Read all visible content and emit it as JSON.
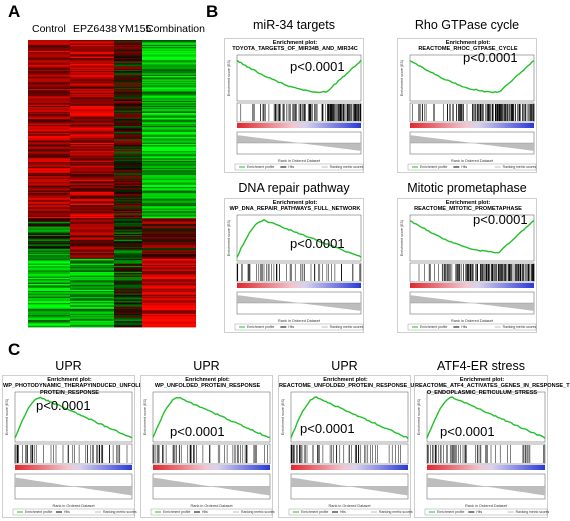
{
  "figure": {
    "panel_labels": [
      "A",
      "B",
      "C"
    ],
    "heatmap": {
      "columns": [
        "Control",
        "EPZ6438",
        "YM155",
        "Combination"
      ]
    }
  },
  "chart_data": [
    {
      "type": "heatmap",
      "panel": "A",
      "title": "",
      "columns": [
        "Control",
        "EPZ6438",
        "YM155",
        "Combination"
      ],
      "colors": {
        "high": "#ff1a1a",
        "low": "#1aff1a",
        "mid": "#000000"
      }
    },
    {
      "type": "line",
      "panel": "B",
      "title": "miR-34 targets",
      "enrichment_title": "Enrichment plot:\nTOYOTA_TARGETS_OF_MIR34B_AND_MIR34C",
      "p_value": "p<0.0001",
      "ylabel": "Enrichment score (ES)",
      "xlabel": "Rank in Ordered Dataset",
      "legend": [
        "Enrichment profile",
        "Hits",
        "Ranking metric scores"
      ],
      "shape": "negative"
    },
    {
      "type": "line",
      "panel": "B",
      "title": "Rho GTPase cycle",
      "enrichment_title": "Enrichment plot:\nREACTOME_RHOC_GTPASE_CYCLE",
      "p_value": "p<0.0001",
      "ylabel": "Enrichment score (ES)",
      "xlabel": "Rank in Ordered Dataset",
      "legend": [
        "Enrichment profile",
        "Hits",
        "Ranking metric scores"
      ],
      "shape": "negative"
    },
    {
      "type": "line",
      "panel": "B",
      "title": "DNA repair pathway",
      "enrichment_title": "Enrichment plot:\nWP_DNA_REPAIR_PATHWAYS_FULL_NETWORK",
      "p_value": "p<0.0001",
      "ylabel": "Enrichment score (ES)",
      "xlabel": "Rank in Ordered Dataset",
      "legend": [
        "Enrichment profile",
        "Hits",
        "Ranking metric scores"
      ],
      "shape": "positive"
    },
    {
      "type": "line",
      "panel": "B",
      "title": "Mitotic prometaphase",
      "enrichment_title": "Enrichment plot:\nREACTOME_MITOTIC_PROMETAPHASE",
      "p_value": "p<0.0001",
      "ylabel": "Enrichment score (ES)",
      "xlabel": "Rank in Ordered Dataset",
      "legend": [
        "Enrichment profile",
        "Hits",
        "Ranking metric scores"
      ],
      "shape": "negative"
    },
    {
      "type": "line",
      "panel": "C",
      "title": "UPR",
      "enrichment_title": "Enrichment plot:\nWP_PHOTODYNAMIC_THERAPYINDUCED_UNFOLDED_\nPROTEIN_RESPONSE",
      "p_value": "p<0.0001",
      "ylabel": "Enrichment score (ES)",
      "xlabel": "Rank in Ordered Dataset",
      "legend": [
        "Enrichment profile",
        "Hits",
        "Ranking metric scores"
      ],
      "shape": "positive"
    },
    {
      "type": "line",
      "panel": "C",
      "title": "UPR",
      "enrichment_title": "Enrichment plot: WP_UNFOLDED_PROTEIN_RESPONSE",
      "p_value": "p<0.0001",
      "ylabel": "Enrichment score (ES)",
      "xlabel": "Rank in Ordered Dataset",
      "legend": [
        "Enrichment profile",
        "Hits",
        "Ranking metric scores"
      ],
      "shape": "positive"
    },
    {
      "type": "line",
      "panel": "C",
      "title": "UPR",
      "enrichment_title": "Enrichment plot:\nREACTOME_UNFOLDED_PROTEIN_RESPONSE_UPR",
      "p_value": "p<0.0001",
      "ylabel": "Enrichment score (ES)",
      "xlabel": "Rank in Ordered Dataset",
      "legend": [
        "Enrichment profile",
        "Hits",
        "Ranking metric scores"
      ],
      "shape": "positive"
    },
    {
      "type": "line",
      "panel": "C",
      "title": "ATF4-ER stress",
      "enrichment_title": "Enrichment plot:\nREACTOME_ATF4_ACTIVATES_GENES_IN_RESPONSE_T\nO_ENDOPLASMIC_RETICULUM_STRESS",
      "p_value": "p<0.0001",
      "ylabel": "Enrichment score (ES)",
      "xlabel": "Rank in Ordered Dataset",
      "legend": [
        "Enrichment profile",
        "Hits",
        "Ranking metric scores"
      ],
      "shape": "positive"
    }
  ]
}
